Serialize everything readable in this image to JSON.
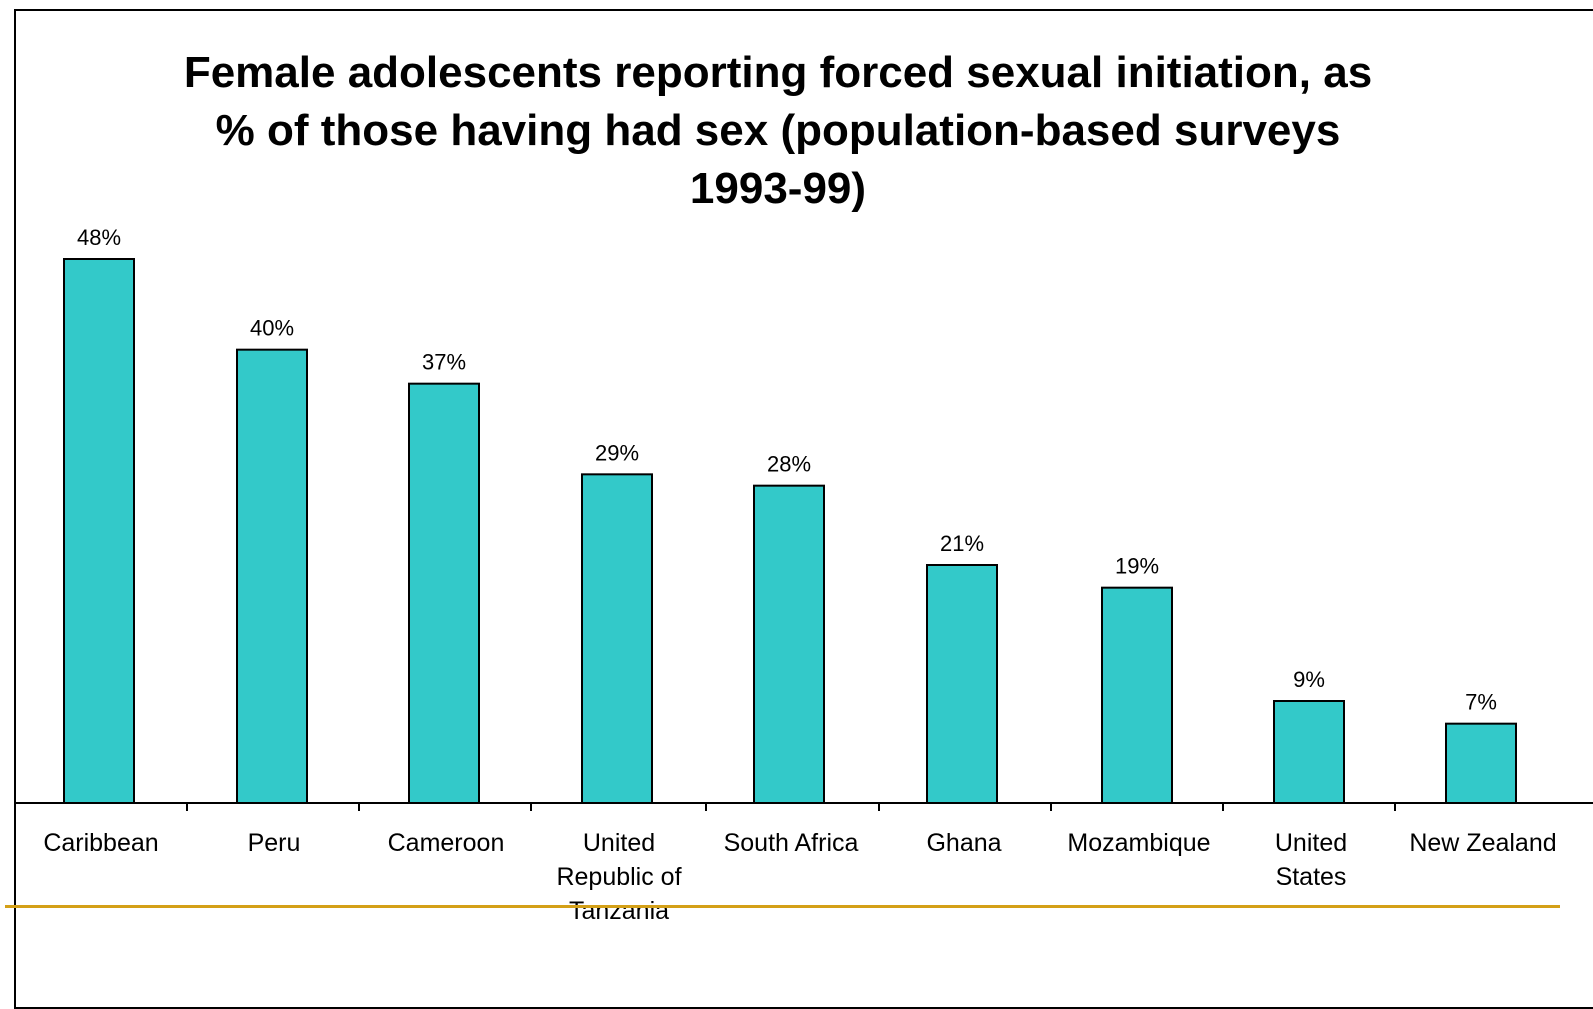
{
  "chart_data": {
    "type": "bar",
    "title": "Female adolescents reporting forced sexual initiation, as % of those having had sex (population-based surveys 1993-99)",
    "xlabel": "",
    "ylabel": "",
    "ylim": [
      0,
      48
    ],
    "grid": false,
    "legend": "none",
    "categories": [
      "Caribbean",
      "Peru",
      "Cameroon",
      "United Republic of Tanzania",
      "South Africa",
      "Ghana",
      "Mozambique",
      "United States",
      "New Zealand"
    ],
    "category_lines": [
      [
        "Caribbean"
      ],
      [
        "Peru"
      ],
      [
        "Cameroon"
      ],
      [
        "United",
        "Republic of",
        "Tanzania"
      ],
      [
        "South Africa"
      ],
      [
        "Ghana"
      ],
      [
        "Mozambique"
      ],
      [
        "United",
        "States"
      ],
      [
        "New Zealand"
      ]
    ],
    "values": [
      48,
      40,
      37,
      29,
      28,
      21,
      19,
      9,
      7
    ],
    "data_labels": [
      "48%",
      "40%",
      "37%",
      "29%",
      "28%",
      "21%",
      "19%",
      "9%",
      "7%"
    ],
    "colors": {
      "bar": "#33c9c9",
      "bar_stroke": "#000000",
      "axis": "#000000",
      "footer_rule": "#d4a017"
    }
  }
}
